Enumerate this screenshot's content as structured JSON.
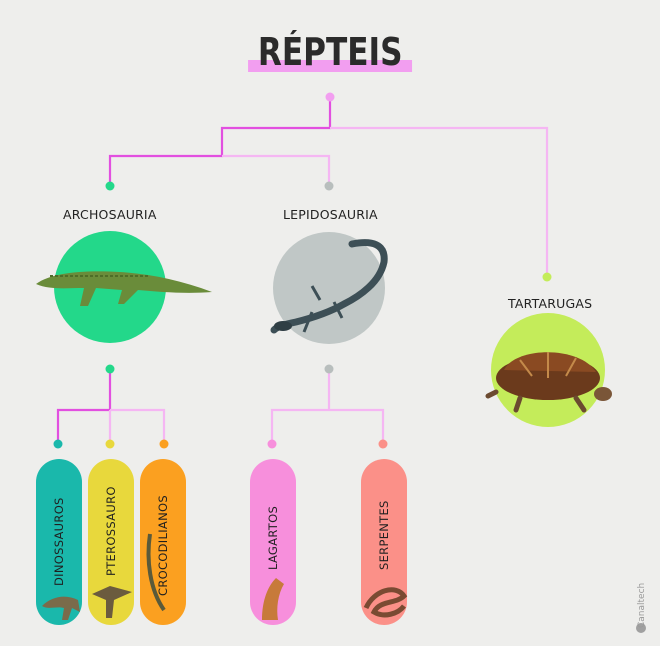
{
  "title": "RÉPTEIS",
  "groups": {
    "archosauria": "ARCHOSAURIA",
    "lepidosauria": "LEPIDOSAURIA",
    "tartarugas": "TARTARUGAS"
  },
  "leaves": {
    "dinossauros": "DINOSSAUROS",
    "pterossauro": "PTEROSSAURO",
    "crocodilianos": "CROCODILIANOS",
    "lagartos": "LAGARTOS",
    "serpentes": "SERPENTES"
  },
  "colors": {
    "highlight": "#f29ef0",
    "link_dark": "#e24fe0",
    "link_light": "#f5b6f3",
    "archosauria": "#23d88a",
    "lepidosauria": "#c0c7c6",
    "tartarugas": "#c4ec5a",
    "dinossauros": "#1ab8ab",
    "pterossauro": "#e8d83c",
    "crocodilianos": "#fba020",
    "lagartos": "#f78fdc",
    "serpentes": "#fb9088"
  },
  "watermark": "Canaltech"
}
